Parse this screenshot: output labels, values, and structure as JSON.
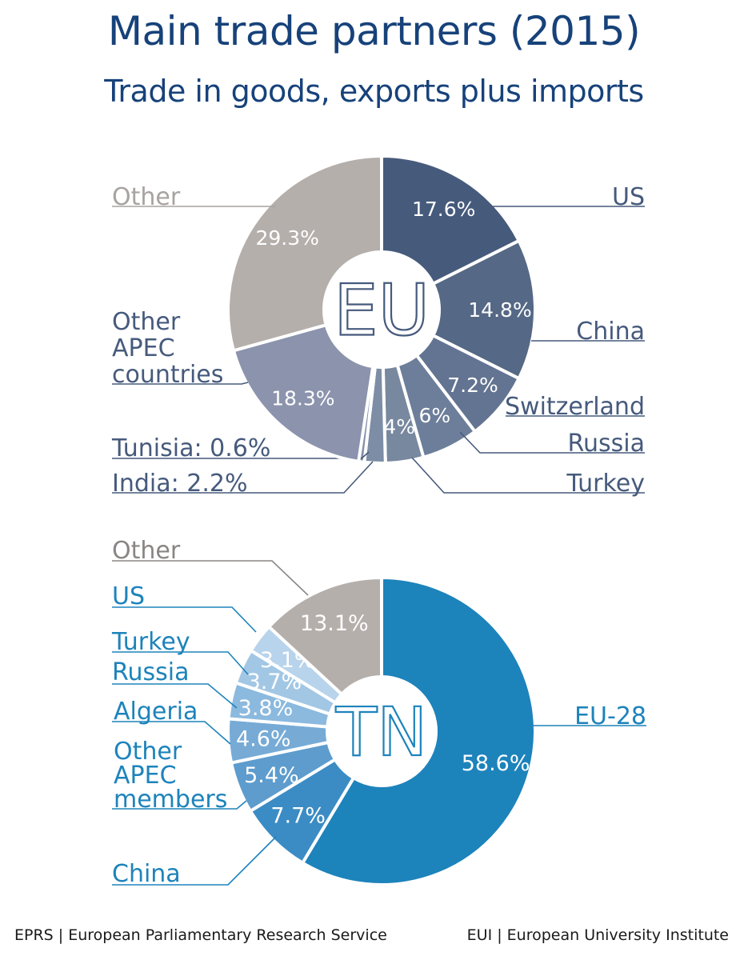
{
  "title": "Main trade partners (2015)",
  "subtitle": "Trade in goods, exports plus imports",
  "footer": {
    "left": "EPRS | European Parliamentary Research Service",
    "right": "EUI | European University Institute"
  },
  "chart_data": [
    {
      "type": "pie",
      "variant": "donut",
      "center_label": "EU",
      "slices": [
        {
          "name": "US",
          "value": 17.6,
          "value_label": "17.6%",
          "label_lines": [
            "US"
          ],
          "color": "#465a7c",
          "value_color": "#ffffff",
          "label_color": "#465a7c"
        },
        {
          "name": "China",
          "value": 14.8,
          "value_label": "14.8%",
          "label_lines": [
            "China"
          ],
          "color": "#556885",
          "value_color": "#ffffff",
          "label_color": "#465a7c"
        },
        {
          "name": "Switzerland",
          "value": 7.2,
          "value_label": "7.2%",
          "label_lines": [
            "Switzerland"
          ],
          "color": "#627491",
          "value_color": "#ffffff",
          "label_color": "#465a7c"
        },
        {
          "name": "Russia",
          "value": 6,
          "value_label": "6%",
          "label_lines": [
            "Russia"
          ],
          "color": "#6d7e9a",
          "value_color": "#ffffff",
          "label_color": "#465a7c"
        },
        {
          "name": "Turkey",
          "value": 4,
          "value_label": "4%",
          "label_lines": [
            "Turkey"
          ],
          "color": "#78889f",
          "value_color": "#ffffff",
          "label_color": "#465a7c"
        },
        {
          "name": "India",
          "value": 2.2,
          "value_label": "",
          "label_lines": [
            "India: 2.2%"
          ],
          "color": "#7d8da6",
          "value_color": "#ffffff",
          "label_color": "#465a7c"
        },
        {
          "name": "Tunisia",
          "value": 0.6,
          "value_label": "",
          "label_lines": [
            "Tunisia: 0.6%"
          ],
          "color": "#8390ab",
          "value_color": "#ffffff",
          "label_color": "#465a7c"
        },
        {
          "name": "Other APEC countries",
          "value": 18.3,
          "value_label": "18.3%",
          "label_lines": [
            "Other",
            "APEC",
            "countries"
          ],
          "color": "#8b93ad",
          "value_color": "#ffffff",
          "label_color": "#465a7c"
        },
        {
          "name": "Other",
          "value": 29.3,
          "value_label": "29.3%",
          "label_lines": [
            "Other"
          ],
          "color": "#b5afac",
          "value_color": "#ffffff",
          "label_color": "#a8a2a0"
        }
      ]
    },
    {
      "type": "pie",
      "variant": "donut",
      "center_label": "TN",
      "slices": [
        {
          "name": "EU-28",
          "value": 58.6,
          "value_label": "58.6%",
          "label_lines": [
            "EU-28"
          ],
          "color": "#1d83bb",
          "value_color": "#ffffff",
          "label_color": "#1d83bb"
        },
        {
          "name": "China",
          "value": 7.7,
          "value_label": "7.7%",
          "label_lines": [
            "China"
          ],
          "color": "#3b8cc4",
          "value_color": "#ffffff",
          "label_color": "#1d83bb"
        },
        {
          "name": "Other APEC members",
          "value": 5.4,
          "value_label": "5.4%",
          "label_lines": [
            "Other",
            "APEC",
            "members"
          ],
          "color": "#5d9ccd",
          "value_color": "#ffffff",
          "label_color": "#1d83bb"
        },
        {
          "name": "Algeria",
          "value": 4.6,
          "value_label": "4.6%",
          "label_lines": [
            "Algeria"
          ],
          "color": "#77abd6",
          "value_color": "#ffffff",
          "label_color": "#1d83bb"
        },
        {
          "name": "Russia",
          "value": 3.8,
          "value_label": "3.8%",
          "label_lines": [
            "Russia"
          ],
          "color": "#8cb9de",
          "value_color": "#ffffff",
          "label_color": "#1d83bb"
        },
        {
          "name": "Turkey",
          "value": 3.7,
          "value_label": "3.7%",
          "label_lines": [
            "Turkey"
          ],
          "color": "#a2c7e5",
          "value_color": "#ffffff",
          "label_color": "#1d83bb"
        },
        {
          "name": "US",
          "value": 3.1,
          "value_label": "3.1%",
          "label_lines": [
            "US"
          ],
          "color": "#b8d4ec",
          "value_color": "#ffffff",
          "label_color": "#1d83bb"
        },
        {
          "name": "Other",
          "value": 13.1,
          "value_label": "13.1%",
          "label_lines": [
            "Other"
          ],
          "color": "#b5afac",
          "value_color": "#ffffff",
          "label_color": "#8a8584"
        }
      ]
    }
  ]
}
